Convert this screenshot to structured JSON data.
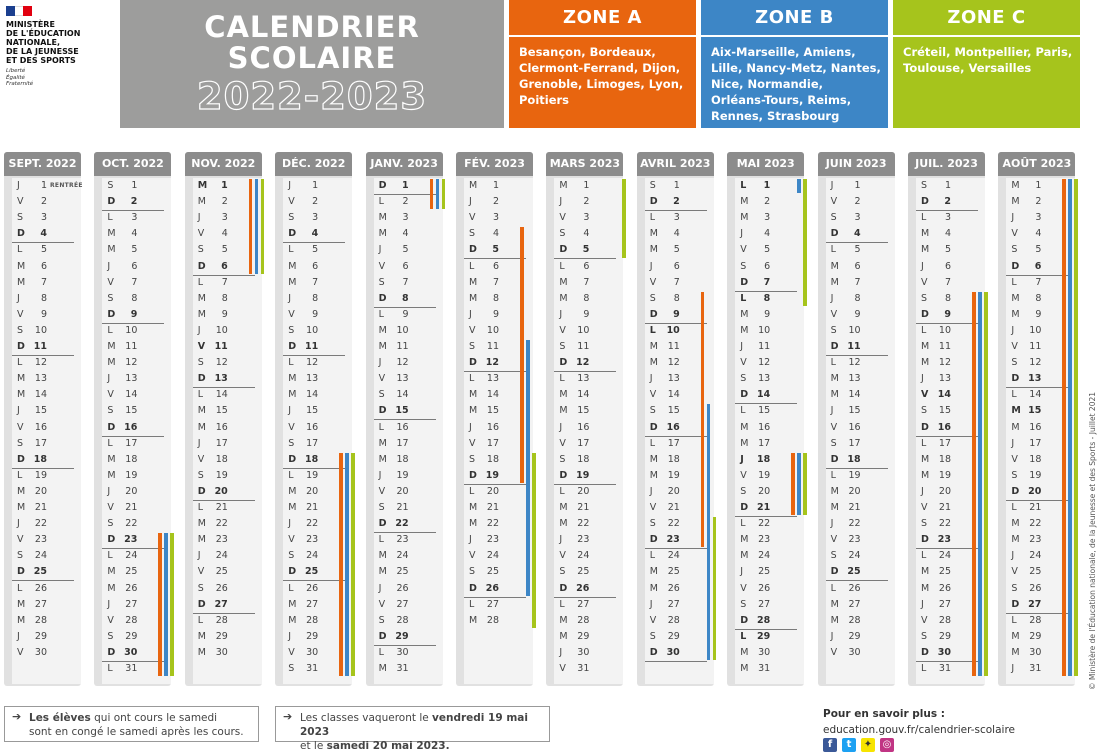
{
  "logo": {
    "ministry_lines": [
      "MINISTÈRE",
      "DE L'ÉDUCATION",
      "NATIONALE,",
      "DE LA JEUNESSE",
      "ET DES SPORTS"
    ],
    "motto_lines": [
      "Liberté",
      "Égalité",
      "Fraternité"
    ]
  },
  "title": {
    "line1": "CALENDRIER",
    "line2": "SCOLAIRE",
    "year": "2022-2023"
  },
  "zones": [
    {
      "name": "ZONE A",
      "color": "#e8650f",
      "cities": "Besançon, Bordeaux, Clermont-Ferrand, Dijon, Grenoble, Limoges, Lyon, Poitiers"
    },
    {
      "name": "ZONE B",
      "color": "#3d86c6",
      "cities": "Aix-Marseille, Amiens, Lille, Nancy-Metz, Nantes, Nice, Normandie, Orléans-Tours, Reims, Rennes, Strasbourg"
    },
    {
      "name": "ZONE C",
      "color": "#a6c41c",
      "cities": "Créteil, Montpellier, Paris, Toulouse, Versailles"
    }
  ],
  "rentree_label": "RENTRÉE",
  "months": [
    {
      "name": "SEPT. 2022",
      "days": 30,
      "first_wd": 3
    },
    {
      "name": "OCT. 2022",
      "days": 31,
      "first_wd": 5
    },
    {
      "name": "NOV. 2022",
      "days": 30,
      "first_wd": 1
    },
    {
      "name": "DÉC. 2022",
      "days": 31,
      "first_wd": 3
    },
    {
      "name": "JANV. 2023",
      "days": 31,
      "first_wd": 6
    },
    {
      "name": "FÉV. 2023",
      "days": 28,
      "first_wd": 2
    },
    {
      "name": "MARS 2023",
      "days": 31,
      "first_wd": 2
    },
    {
      "name": "AVRIL 2023",
      "days": 30,
      "first_wd": 5
    },
    {
      "name": "MAI 2023",
      "days": 31,
      "first_wd": 0
    },
    {
      "name": "JUIN 2023",
      "days": 30,
      "first_wd": 3
    },
    {
      "name": "JUIL. 2023",
      "days": 31,
      "first_wd": 5
    },
    {
      "name": "AOÛT 2023",
      "days": 31,
      "first_wd": 1
    }
  ],
  "weekday_letters": [
    "L",
    "M",
    "M",
    "J",
    "V",
    "S",
    "D"
  ],
  "holidays": [
    {
      "month": 1,
      "from": 23,
      "to": 31,
      "zones": [
        0,
        1,
        2
      ]
    },
    {
      "month": 2,
      "from": 1,
      "to": 6,
      "zones": [
        0,
        1,
        2
      ]
    },
    {
      "month": 3,
      "from": 18,
      "to": 31,
      "zones": [
        0,
        1,
        2
      ]
    },
    {
      "month": 4,
      "from": 1,
      "to": 2,
      "zones": [
        0,
        1,
        2
      ]
    },
    {
      "month": 5,
      "from": 4,
      "to": 19,
      "zones": [
        0
      ]
    },
    {
      "month": 5,
      "from": 11,
      "to": 26,
      "zones": [
        1
      ]
    },
    {
      "month": 5,
      "from": 18,
      "to": 28,
      "zones": [
        2
      ]
    },
    {
      "month": 6,
      "from": 1,
      "to": 5,
      "zones": [
        2
      ]
    },
    {
      "month": 7,
      "from": 8,
      "to": 23,
      "zones": [
        0
      ]
    },
    {
      "month": 7,
      "from": 15,
      "to": 30,
      "zones": [
        1
      ]
    },
    {
      "month": 7,
      "from": 22,
      "to": 30,
      "zones": [
        2
      ]
    },
    {
      "month": 8,
      "from": 1,
      "to": 1,
      "zones": [
        1
      ]
    },
    {
      "month": 8,
      "from": 1,
      "to": 8,
      "zones": [
        2
      ]
    },
    {
      "month": 8,
      "from": 18,
      "to": 21,
      "zones": [
        0,
        1,
        2
      ]
    },
    {
      "month": 10,
      "from": 8,
      "to": 31,
      "zones": [
        0,
        1,
        2
      ]
    },
    {
      "month": 11,
      "from": 1,
      "to": 31,
      "zones": [
        0,
        1,
        2
      ]
    }
  ],
  "holiday_dates": [
    {
      "month": 2,
      "day": 1
    },
    {
      "month": 2,
      "day": 11
    },
    {
      "month": 4,
      "day": 1
    },
    {
      "month": 7,
      "day": 10
    },
    {
      "month": 8,
      "day": 1
    },
    {
      "month": 8,
      "day": 8
    },
    {
      "month": 8,
      "day": 18
    },
    {
      "month": 8,
      "day": 29
    },
    {
      "month": 10,
      "day": 14
    },
    {
      "month": 11,
      "day": 15
    }
  ],
  "notes": {
    "note1_bold": "Les élèves",
    "note1_rest": " qui ont cours le samedi",
    "note1_line2": "sont en congé le samedi après les cours.",
    "note2_pre": "Les classes vaqueront le ",
    "note2_bold1": "vendredi 19 mai 2023",
    "note2_mid": "et le ",
    "note2_bold2": "samedi 20 mai 2023."
  },
  "info": {
    "title": "Pour en savoir plus :",
    "url": "education.gouv.fr/calendrier-scolaire"
  },
  "copyright": "© Ministère de l'Éducation nationale, de la Jeunesse et des Sports - Juillet 2021"
}
